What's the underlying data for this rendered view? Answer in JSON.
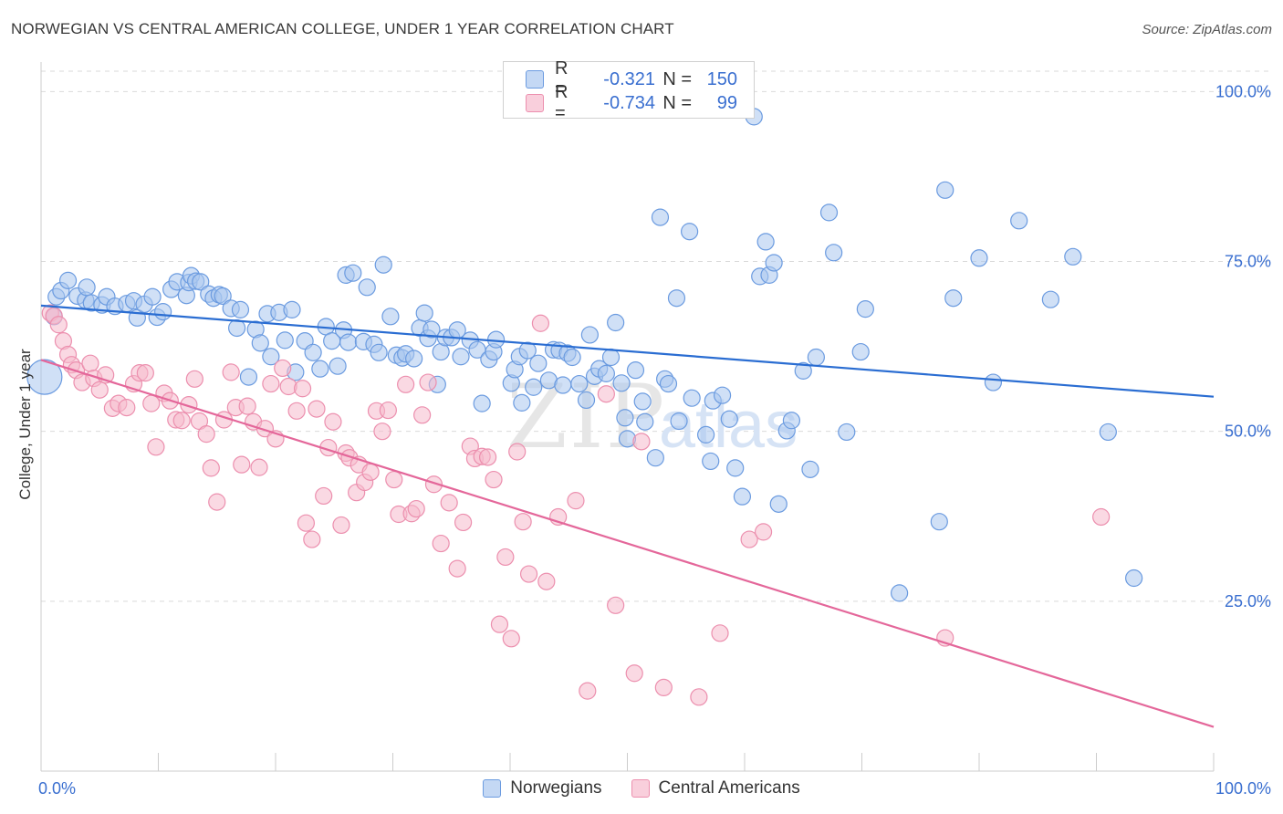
{
  "title": "NORWEGIAN VS CENTRAL AMERICAN COLLEGE, UNDER 1 YEAR CORRELATION CHART",
  "source": "Source: ZipAtlas.com",
  "watermark": {
    "zip": "ZIP",
    "atlas": "atlas"
  },
  "legend": {
    "rows": [
      {
        "r_label": "R =",
        "r_value": "-0.321",
        "n_label": "N =",
        "n_value": "150"
      },
      {
        "r_label": "R =",
        "r_value": "-0.734",
        "n_label": "N =",
        "n_value": "99"
      }
    ]
  },
  "bottom_legend": [
    "Norwegians",
    "Central Americans"
  ],
  "colors": {
    "blue_fill": "#a9c6ee",
    "blue_stroke": "#6b9be0",
    "blue_line": "#2a6dd2",
    "pink_fill": "#f6b9cc",
    "pink_stroke": "#ec8fae",
    "pink_line": "#e4679a",
    "grid": "#d9d9d9",
    "tick_text": "#3a6fd0"
  },
  "chart_data": {
    "type": "scatter",
    "title": "NORWEGIAN VS CENTRAL AMERICAN COLLEGE, UNDER 1 YEAR CORRELATION CHART",
    "xlabel": "",
    "ylabel": "College, Under 1 year",
    "xlim": [
      0,
      100
    ],
    "ylim": [
      0,
      103
    ],
    "x_tick_labels": [
      "0.0%",
      "100.0%"
    ],
    "y_tick_labels": [
      "25.0%",
      "50.0%",
      "75.0%",
      "100.0%"
    ],
    "y_ticks": [
      25,
      50,
      75,
      100
    ],
    "grid": true,
    "legend_position": "top-center",
    "series": [
      {
        "name": "Norwegians",
        "color": "#a9c6ee",
        "trend": {
          "x": [
            0,
            100
          ],
          "y": [
            68.5,
            55.1
          ]
        },
        "points": [
          [
            0.3,
            58.0
          ],
          [
            1.1,
            66.9
          ],
          [
            1.3,
            69.8
          ],
          [
            1.7,
            70.7
          ],
          [
            2.3,
            72.2
          ],
          [
            3.1,
            69.9
          ],
          [
            3.8,
            69.3
          ],
          [
            3.9,
            71.2
          ],
          [
            4.3,
            68.9
          ],
          [
            5.2,
            68.6
          ],
          [
            5.6,
            69.8
          ],
          [
            6.3,
            68.4
          ],
          [
            7.3,
            68.8
          ],
          [
            7.9,
            69.2
          ],
          [
            8.2,
            66.7
          ],
          [
            8.8,
            68.7
          ],
          [
            9.5,
            69.8
          ],
          [
            9.9,
            66.8
          ],
          [
            10.4,
            67.6
          ],
          [
            11.1,
            70.9
          ],
          [
            11.6,
            72.0
          ],
          [
            12.4,
            70.0
          ],
          [
            12.6,
            71.9
          ],
          [
            12.8,
            72.9
          ],
          [
            13.2,
            72.1
          ],
          [
            13.6,
            72.0
          ],
          [
            14.3,
            70.2
          ],
          [
            14.7,
            69.6
          ],
          [
            15.2,
            70.1
          ],
          [
            15.5,
            69.9
          ],
          [
            16.2,
            68.1
          ],
          [
            16.7,
            65.2
          ],
          [
            17.0,
            67.9
          ],
          [
            17.7,
            58.0
          ],
          [
            18.3,
            65.0
          ],
          [
            18.7,
            63.0
          ],
          [
            19.3,
            67.3
          ],
          [
            19.6,
            61.0
          ],
          [
            20.3,
            67.5
          ],
          [
            20.8,
            63.4
          ],
          [
            21.4,
            67.9
          ],
          [
            21.7,
            58.7
          ],
          [
            22.5,
            63.3
          ],
          [
            23.2,
            61.6
          ],
          [
            23.8,
            59.2
          ],
          [
            24.3,
            65.4
          ],
          [
            24.8,
            63.3
          ],
          [
            25.3,
            59.6
          ],
          [
            25.8,
            64.9
          ],
          [
            26.0,
            73.0
          ],
          [
            26.2,
            63.1
          ],
          [
            26.6,
            73.3
          ],
          [
            27.5,
            63.2
          ],
          [
            27.8,
            71.2
          ],
          [
            28.4,
            62.8
          ],
          [
            28.8,
            61.6
          ],
          [
            29.2,
            74.5
          ],
          [
            29.8,
            66.9
          ],
          [
            30.3,
            61.2
          ],
          [
            30.8,
            60.8
          ],
          [
            31.1,
            61.4
          ],
          [
            31.8,
            60.7
          ],
          [
            32.3,
            65.2
          ],
          [
            32.7,
            67.4
          ],
          [
            33.0,
            63.7
          ],
          [
            33.3,
            65.0
          ],
          [
            33.8,
            56.9
          ],
          [
            34.1,
            61.7
          ],
          [
            34.5,
            63.8
          ],
          [
            35.0,
            63.8
          ],
          [
            35.5,
            64.9
          ],
          [
            35.8,
            61.0
          ],
          [
            36.6,
            63.4
          ],
          [
            37.2,
            62.0
          ],
          [
            37.6,
            54.1
          ],
          [
            38.2,
            60.6
          ],
          [
            38.6,
            61.7
          ],
          [
            38.8,
            63.5
          ],
          [
            40.1,
            57.1
          ],
          [
            40.4,
            59.1
          ],
          [
            40.8,
            61.0
          ],
          [
            41.0,
            54.2
          ],
          [
            41.5,
            61.9
          ],
          [
            42.0,
            56.5
          ],
          [
            42.4,
            60.0
          ],
          [
            43.3,
            57.5
          ],
          [
            43.7,
            62.0
          ],
          [
            44.2,
            61.9
          ],
          [
            44.5,
            56.8
          ],
          [
            44.9,
            61.5
          ],
          [
            45.3,
            60.9
          ],
          [
            45.9,
            57.0
          ],
          [
            46.5,
            54.6
          ],
          [
            46.8,
            64.2
          ],
          [
            47.2,
            58.1
          ],
          [
            47.6,
            59.2
          ],
          [
            48.2,
            58.5
          ],
          [
            48.6,
            60.9
          ],
          [
            49.0,
            66.0
          ],
          [
            49.5,
            57.1
          ],
          [
            49.8,
            52.0
          ],
          [
            50.0,
            48.9
          ],
          [
            50.7,
            59.0
          ],
          [
            51.3,
            54.4
          ],
          [
            51.5,
            51.4
          ],
          [
            52.4,
            46.1
          ],
          [
            52.8,
            81.5
          ],
          [
            53.2,
            57.7
          ],
          [
            53.5,
            57.0
          ],
          [
            54.2,
            69.6
          ],
          [
            54.4,
            51.5
          ],
          [
            55.3,
            79.4
          ],
          [
            55.5,
            54.9
          ],
          [
            56.7,
            49.5
          ],
          [
            57.1,
            45.6
          ],
          [
            57.3,
            54.5
          ],
          [
            58.1,
            55.3
          ],
          [
            58.7,
            51.8
          ],
          [
            59.2,
            44.6
          ],
          [
            59.8,
            40.4
          ],
          [
            60.8,
            96.3
          ],
          [
            61.3,
            72.8
          ],
          [
            61.8,
            77.9
          ],
          [
            62.1,
            73.0
          ],
          [
            62.5,
            74.8
          ],
          [
            62.9,
            39.3
          ],
          [
            63.6,
            50.1
          ],
          [
            64.0,
            51.6
          ],
          [
            65.0,
            58.9
          ],
          [
            65.6,
            44.4
          ],
          [
            66.1,
            60.9
          ],
          [
            67.2,
            82.2
          ],
          [
            67.6,
            76.3
          ],
          [
            68.7,
            49.9
          ],
          [
            69.9,
            61.7
          ],
          [
            70.3,
            68.0
          ],
          [
            76.6,
            36.7
          ],
          [
            77.1,
            85.5
          ],
          [
            77.8,
            69.6
          ],
          [
            80.0,
            75.5
          ],
          [
            81.2,
            57.2
          ],
          [
            83.4,
            81.0
          ],
          [
            86.1,
            69.4
          ],
          [
            88.0,
            75.7
          ],
          [
            91.0,
            49.9
          ],
          [
            93.2,
            28.4
          ],
          [
            73.2,
            26.2
          ]
        ]
      },
      {
        "name": "Central Americans",
        "color": "#f6b9cc",
        "trend": {
          "x": [
            0,
            100
          ],
          "y": [
            60.5,
            6.5
          ]
        },
        "points": [
          [
            0.8,
            67.4
          ],
          [
            1.1,
            67.0
          ],
          [
            1.5,
            65.7
          ],
          [
            1.9,
            63.3
          ],
          [
            2.3,
            61.3
          ],
          [
            2.6,
            59.8
          ],
          [
            3.0,
            59.0
          ],
          [
            3.5,
            57.2
          ],
          [
            4.2,
            60.0
          ],
          [
            4.5,
            57.8
          ],
          [
            5.0,
            56.1
          ],
          [
            5.5,
            58.3
          ],
          [
            6.1,
            53.4
          ],
          [
            6.6,
            54.1
          ],
          [
            7.3,
            53.5
          ],
          [
            7.9,
            57.0
          ],
          [
            8.4,
            58.6
          ],
          [
            8.9,
            58.6
          ],
          [
            9.4,
            54.1
          ],
          [
            9.8,
            47.7
          ],
          [
            10.5,
            55.6
          ],
          [
            11.0,
            54.5
          ],
          [
            11.5,
            51.7
          ],
          [
            12.0,
            51.6
          ],
          [
            12.6,
            53.9
          ],
          [
            13.1,
            57.7
          ],
          [
            13.5,
            51.5
          ],
          [
            14.1,
            49.6
          ],
          [
            14.5,
            44.6
          ],
          [
            15.0,
            39.6
          ],
          [
            15.6,
            51.7
          ],
          [
            16.2,
            58.7
          ],
          [
            16.6,
            53.5
          ],
          [
            17.1,
            45.1
          ],
          [
            17.6,
            53.7
          ],
          [
            18.1,
            51.4
          ],
          [
            18.6,
            44.7
          ],
          [
            19.1,
            50.4
          ],
          [
            19.6,
            57.0
          ],
          [
            20.0,
            48.9
          ],
          [
            20.6,
            59.3
          ],
          [
            21.1,
            56.6
          ],
          [
            21.8,
            53.0
          ],
          [
            22.3,
            56.3
          ],
          [
            22.6,
            36.5
          ],
          [
            23.1,
            34.1
          ],
          [
            23.5,
            53.3
          ],
          [
            24.1,
            40.5
          ],
          [
            24.5,
            47.6
          ],
          [
            24.9,
            51.4
          ],
          [
            25.6,
            36.2
          ],
          [
            26.0,
            46.8
          ],
          [
            26.3,
            46.1
          ],
          [
            26.9,
            41.0
          ],
          [
            27.1,
            45.1
          ],
          [
            27.6,
            42.5
          ],
          [
            28.1,
            44.0
          ],
          [
            28.6,
            53.0
          ],
          [
            29.1,
            50.0
          ],
          [
            29.6,
            53.1
          ],
          [
            30.1,
            42.9
          ],
          [
            30.5,
            37.8
          ],
          [
            31.1,
            56.9
          ],
          [
            31.6,
            37.9
          ],
          [
            32.0,
            38.6
          ],
          [
            32.5,
            52.4
          ],
          [
            33.0,
            57.2
          ],
          [
            33.5,
            42.2
          ],
          [
            34.1,
            33.5
          ],
          [
            34.8,
            39.5
          ],
          [
            35.5,
            29.8
          ],
          [
            36.0,
            36.6
          ],
          [
            36.6,
            47.8
          ],
          [
            37.0,
            46.0
          ],
          [
            37.6,
            46.3
          ],
          [
            38.1,
            46.2
          ],
          [
            38.6,
            42.9
          ],
          [
            39.1,
            21.6
          ],
          [
            39.6,
            31.5
          ],
          [
            40.1,
            19.5
          ],
          [
            40.6,
            47.0
          ],
          [
            41.1,
            36.7
          ],
          [
            41.6,
            29.0
          ],
          [
            42.6,
            65.9
          ],
          [
            43.1,
            27.9
          ],
          [
            44.1,
            37.4
          ],
          [
            45.6,
            39.8
          ],
          [
            46.6,
            11.8
          ],
          [
            48.2,
            55.5
          ],
          [
            49.0,
            24.4
          ],
          [
            50.6,
            14.4
          ],
          [
            51.2,
            48.5
          ],
          [
            53.1,
            12.3
          ],
          [
            56.1,
            10.9
          ],
          [
            57.9,
            20.3
          ],
          [
            60.4,
            34.1
          ],
          [
            61.6,
            35.2
          ],
          [
            77.1,
            19.6
          ],
          [
            90.4,
            37.4
          ]
        ]
      }
    ]
  }
}
